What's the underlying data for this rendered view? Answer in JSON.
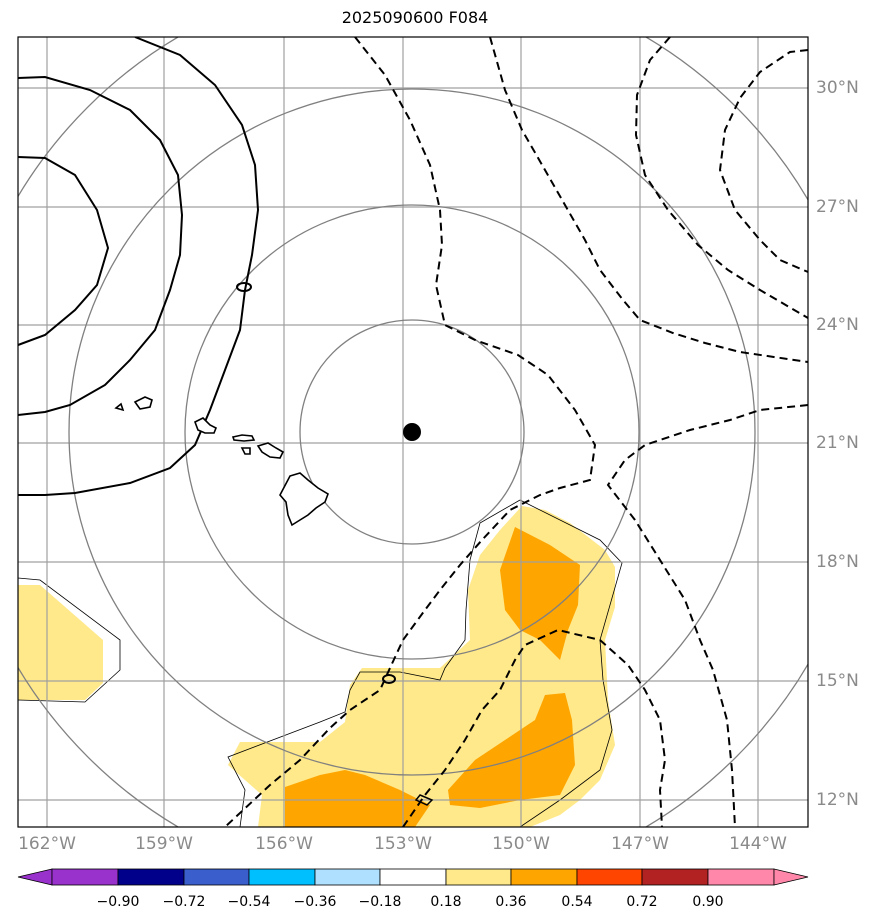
{
  "title": "2025090600 F084",
  "map": {
    "region": "Central Pacific around Hawaii",
    "center_marker": "storm-center-dot",
    "grid_color": "#a0a0a0",
    "ring_color": "#808080",
    "land_outline_color": "#000000",
    "positive_contour_color": "#000000",
    "negative_contour_style": "dashed"
  },
  "axes": {
    "lon_labels": [
      "162°W",
      "159°W",
      "156°W",
      "153°W",
      "150°W",
      "147°W",
      "144°W"
    ],
    "lat_labels": [
      "30°N",
      "27°N",
      "24°N",
      "21°N",
      "18°N",
      "15°N",
      "12°N"
    ]
  },
  "colorbar": {
    "labels": [
      "−0.90",
      "−0.72",
      "−0.54",
      "−0.36",
      "−0.18",
      "0.18",
      "0.36",
      "0.54",
      "0.72",
      "0.90"
    ],
    "colors": [
      "#9932cc",
      "#00008b",
      "#3a5fcd",
      "#00bfff",
      "#b0e0ff",
      "#ffffff",
      "#ffe98a",
      "#ffa500",
      "#ff4500",
      "#b22222",
      "#ff88aa"
    ]
  },
  "shading_colors": {
    "light": "#ffe98a",
    "orange": "#ffa500"
  }
}
